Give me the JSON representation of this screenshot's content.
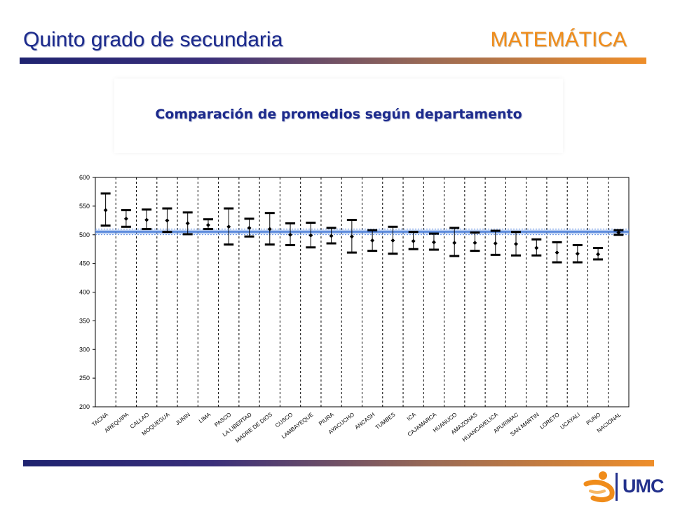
{
  "header": {
    "title": "Quinto grado de secundaria",
    "subject": "MATEMÁTICA"
  },
  "chart_title": "Comparación de promedios según departamento",
  "logo": {
    "text": "UMC"
  },
  "colors": {
    "title_blue": "#1c2a8c",
    "title_orange": "#f08c1a",
    "reference_line": "#3d74d6"
  },
  "chart_data": {
    "type": "error-bar",
    "title": "Comparación de promedios según departamento",
    "ylim": [
      200,
      600
    ],
    "yticks": [
      200,
      250,
      300,
      350,
      400,
      450,
      500,
      550,
      600
    ],
    "grid": "vertical dashed separators between categories",
    "reference_line": 505,
    "categories": [
      "TACNA",
      "AREQUIPA",
      "CALLAO",
      "MOQUEGUA",
      "JUNIN",
      "LIMA",
      "PASCO",
      "LA LIBERTAD",
      "MADRE DE DIOS",
      "CUSCO",
      "LAMBAYEQUE",
      "PIURA",
      "AYACUCHO",
      "ANCASH",
      "TUMBES",
      "ICA",
      "CAJAMARCA",
      "HUANUCO",
      "AMAZONAS",
      "HUANCAVELICA",
      "APURIMAC",
      "SAN MARTIN",
      "LORETO",
      "UCAYALI",
      "PUNO",
      "NACIONAL"
    ],
    "series": [
      {
        "mean": [
          543,
          528,
          526,
          525,
          520,
          517,
          514,
          512,
          510,
          500,
          499,
          498,
          497,
          490,
          490,
          489,
          487,
          486,
          486,
          485,
          484,
          477,
          469,
          467,
          466,
          504
        ],
        "lower": [
          516,
          514,
          510,
          505,
          501,
          510,
          483,
          497,
          483,
          482,
          478,
          485,
          469,
          472,
          467,
          475,
          474,
          463,
          472,
          465,
          464,
          464,
          452,
          452,
          457,
          500
        ],
        "upper": [
          572,
          543,
          544,
          546,
          539,
          527,
          546,
          528,
          538,
          520,
          521,
          512,
          526,
          508,
          514,
          505,
          502,
          512,
          504,
          507,
          505,
          492,
          487,
          482,
          477,
          508
        ]
      }
    ]
  }
}
